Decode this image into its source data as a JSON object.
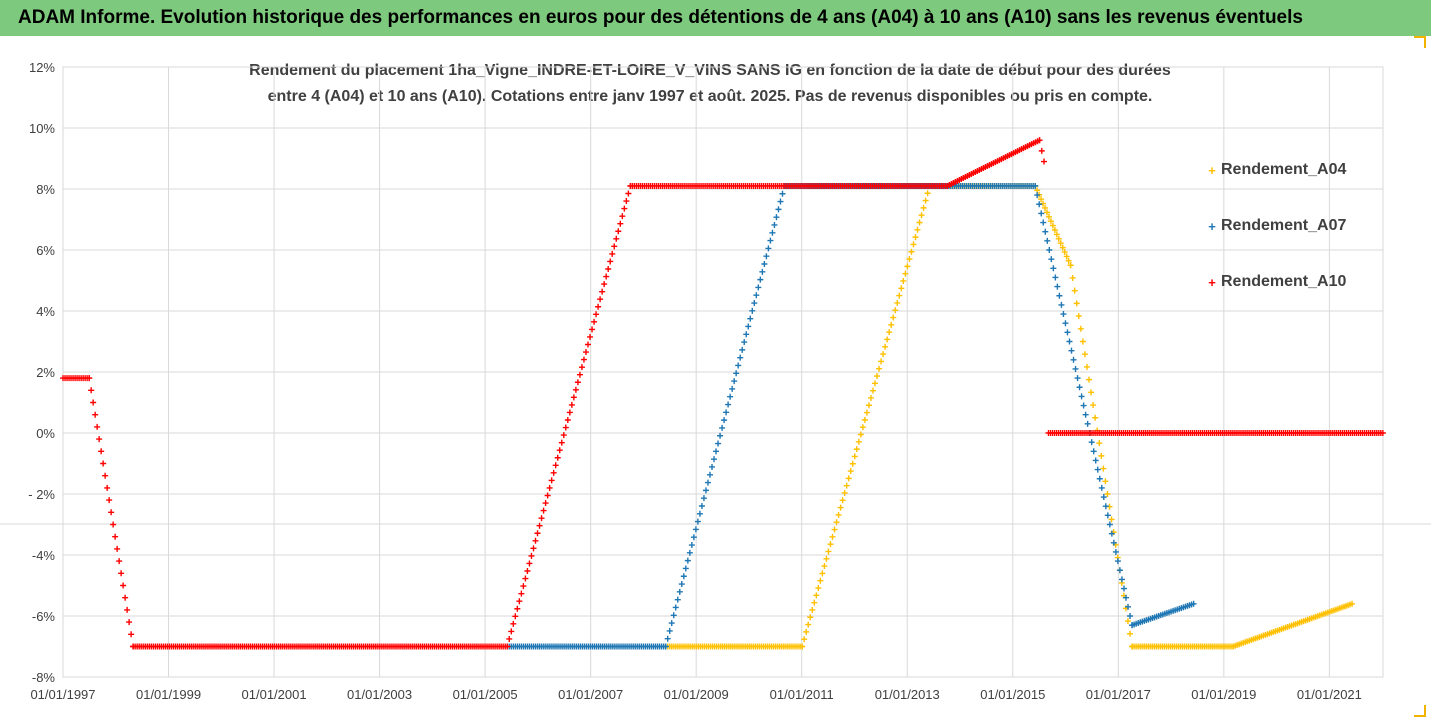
{
  "banner": "ADAM Informe. Evolution historique des performances en euros pour des détentions de 4 ans (A04) à 10 ans (A10) sans les revenus éventuels",
  "chart_data": {
    "type": "scatter",
    "title_line1": "Rendement du placement 1ha_Vigne_INDRE-ET-LOIRE_V_VINS SANS IG en fonction de la date de début pour des durées",
    "title_line2": "entre 4 (A04) et 10 ans (A10). Cotations entre janv 1997 et août. 2025. Pas de revenus disponibles ou pris en compte.",
    "x_ticks": [
      "01/01/1997",
      "01/01/1999",
      "01/01/2001",
      "01/01/2003",
      "01/01/2005",
      "01/01/2007",
      "01/01/2009",
      "01/01/2011",
      "01/01/2013",
      "01/01/2015",
      "01/01/2017",
      "01/01/2019",
      "01/01/2021"
    ],
    "y_ticks": [
      "12%",
      "10%",
      "8%",
      "6%",
      "4%",
      "2%",
      "0%",
      "- 2%",
      "-4%",
      "-6%",
      "-8%"
    ],
    "xlim": [
      "1997-01-01",
      "2022-01-01"
    ],
    "ylim": [
      -8,
      12
    ],
    "grid": true,
    "legend_position": "right",
    "series": [
      {
        "name": "Rendement_A04",
        "color": "#ffc000",
        "points": [
          [
            "2008-06-01",
            -7.0
          ],
          [
            "2011-01-01",
            -7.0
          ],
          [
            "2013-06-01",
            8.1
          ],
          [
            "2015-06-01",
            8.1
          ],
          [
            "2016-02-01",
            5.5
          ],
          [
            "2017-04-01",
            -7.0
          ],
          [
            "2019-03-01",
            -7.0
          ],
          [
            "2021-06-01",
            -5.6
          ]
        ]
      },
      {
        "name": "Rendement_A07",
        "color": "#1f77b4",
        "points": [
          [
            "2005-06-01",
            -7.0
          ],
          [
            "2008-06-01",
            -7.0
          ],
          [
            "2010-09-01",
            8.1
          ],
          [
            "2015-06-01",
            8.1
          ],
          [
            "2017-04-01",
            -6.3
          ],
          [
            "2018-06-01",
            -5.6
          ]
        ]
      },
      {
        "name": "Rendement_A10",
        "color": "#ff0000",
        "points": [
          [
            "1997-01-01",
            1.8
          ],
          [
            "1997-07-01",
            1.8
          ],
          [
            "1998-05-01",
            -7.0
          ],
          [
            "2005-06-01",
            -7.0
          ],
          [
            "2007-10-01",
            8.1
          ],
          [
            "2013-10-01",
            8.1
          ],
          [
            "2015-07-01",
            9.6
          ],
          [
            "2015-08-01",
            8.9
          ]
        ],
        "points_after_gap": [
          [
            "2015-09-01",
            0.0
          ],
          [
            "2021-12-31",
            0.0
          ]
        ]
      }
    ]
  }
}
